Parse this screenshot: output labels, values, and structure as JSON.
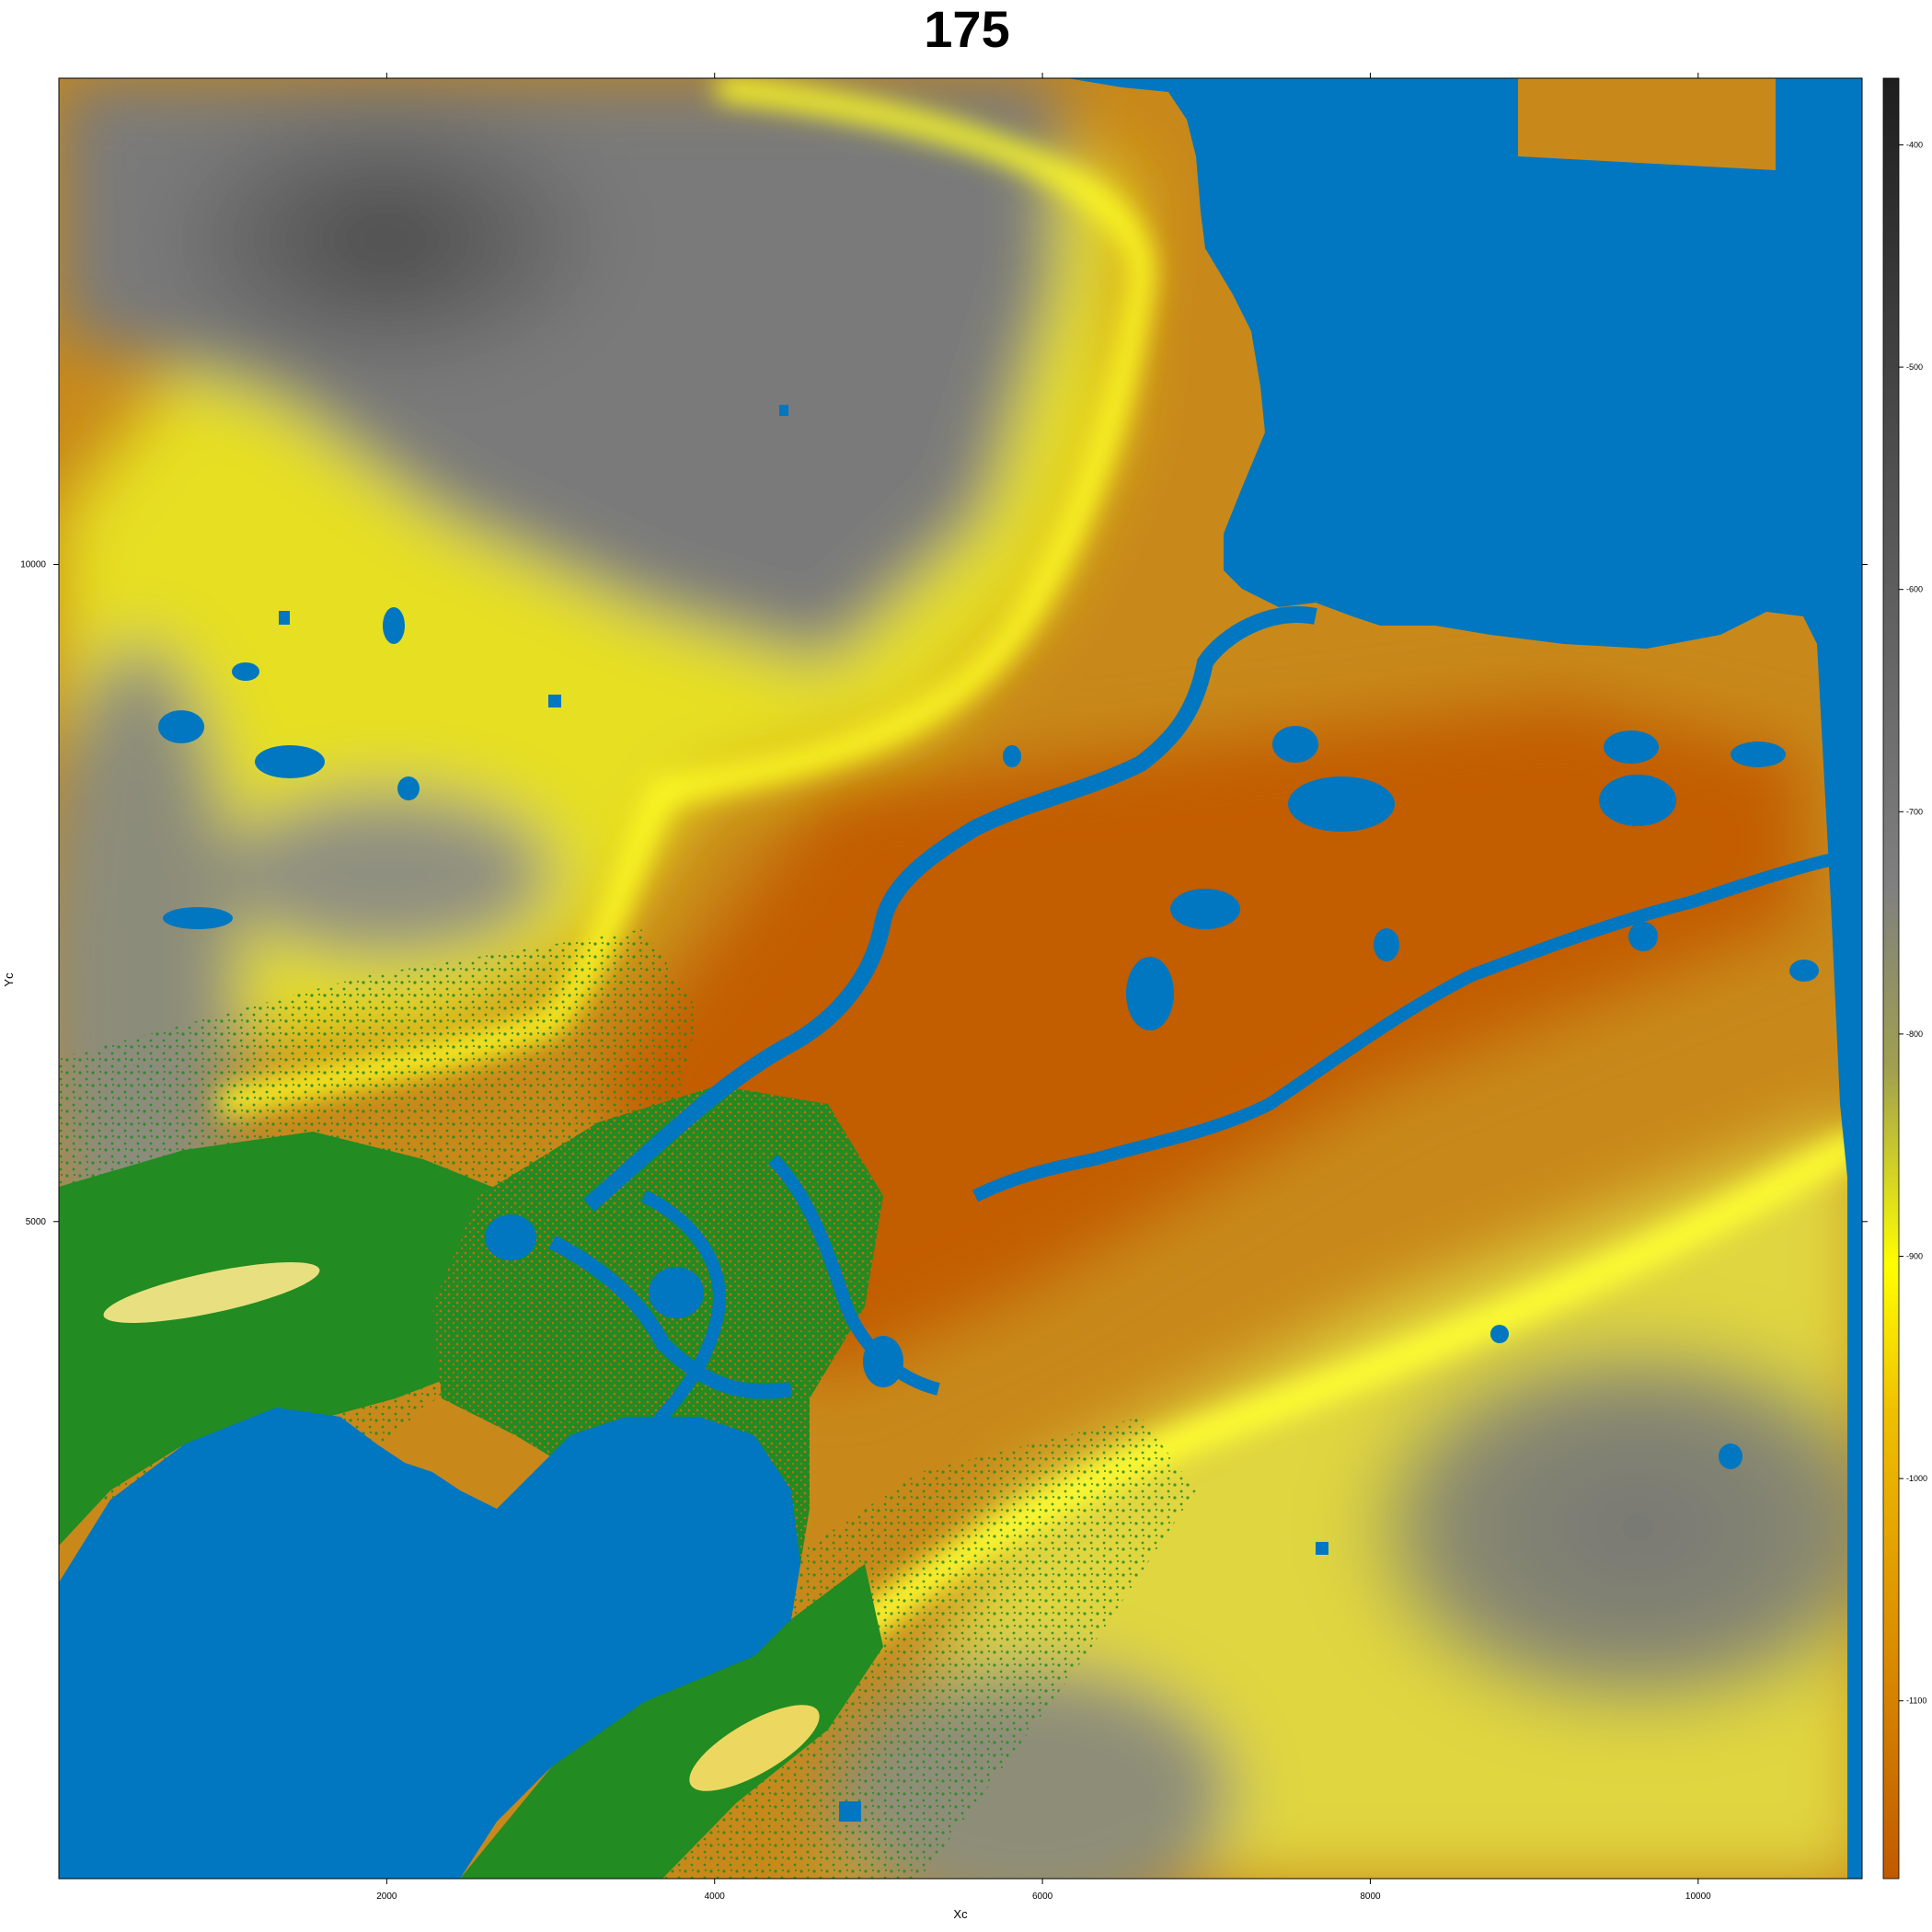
{
  "chart_data": {
    "type": "heatmap",
    "title": "175",
    "xlabel": "Xc",
    "ylabel": "Yc",
    "xlim": [
      0,
      11000
    ],
    "ylim": [
      0,
      13700
    ],
    "x_ticks": [
      {
        "value": 2000,
        "label": "2000"
      },
      {
        "value": 4000,
        "label": "4000"
      },
      {
        "value": 6000,
        "label": "6000"
      },
      {
        "value": 8000,
        "label": "8000"
      },
      {
        "value": 10000,
        "label": "10000"
      }
    ],
    "y_ticks": [
      {
        "value": 5000,
        "label": "5000"
      },
      {
        "value": 10000,
        "label": "10000"
      }
    ],
    "colorbar": {
      "range": [
        -1180,
        -370
      ],
      "ticks": [
        {
          "value": -400,
          "label": "-400"
        },
        {
          "value": -500,
          "label": "-500"
        },
        {
          "value": -600,
          "label": "-600"
        },
        {
          "value": -700,
          "label": "-700"
        },
        {
          "value": -800,
          "label": "-800"
        },
        {
          "value": -900,
          "label": "-900"
        },
        {
          "value": -1000,
          "label": "-1000"
        },
        {
          "value": -1100,
          "label": "-1100"
        }
      ],
      "colors": [
        "#c05a00",
        "#d98a00",
        "#f0c000",
        "#ffff00",
        "#a0a050",
        "#808080",
        "#505050",
        "#1e1e1e"
      ]
    },
    "water_color": "#0077c0",
    "vegetation_color": "#228b22",
    "grid": false
  }
}
